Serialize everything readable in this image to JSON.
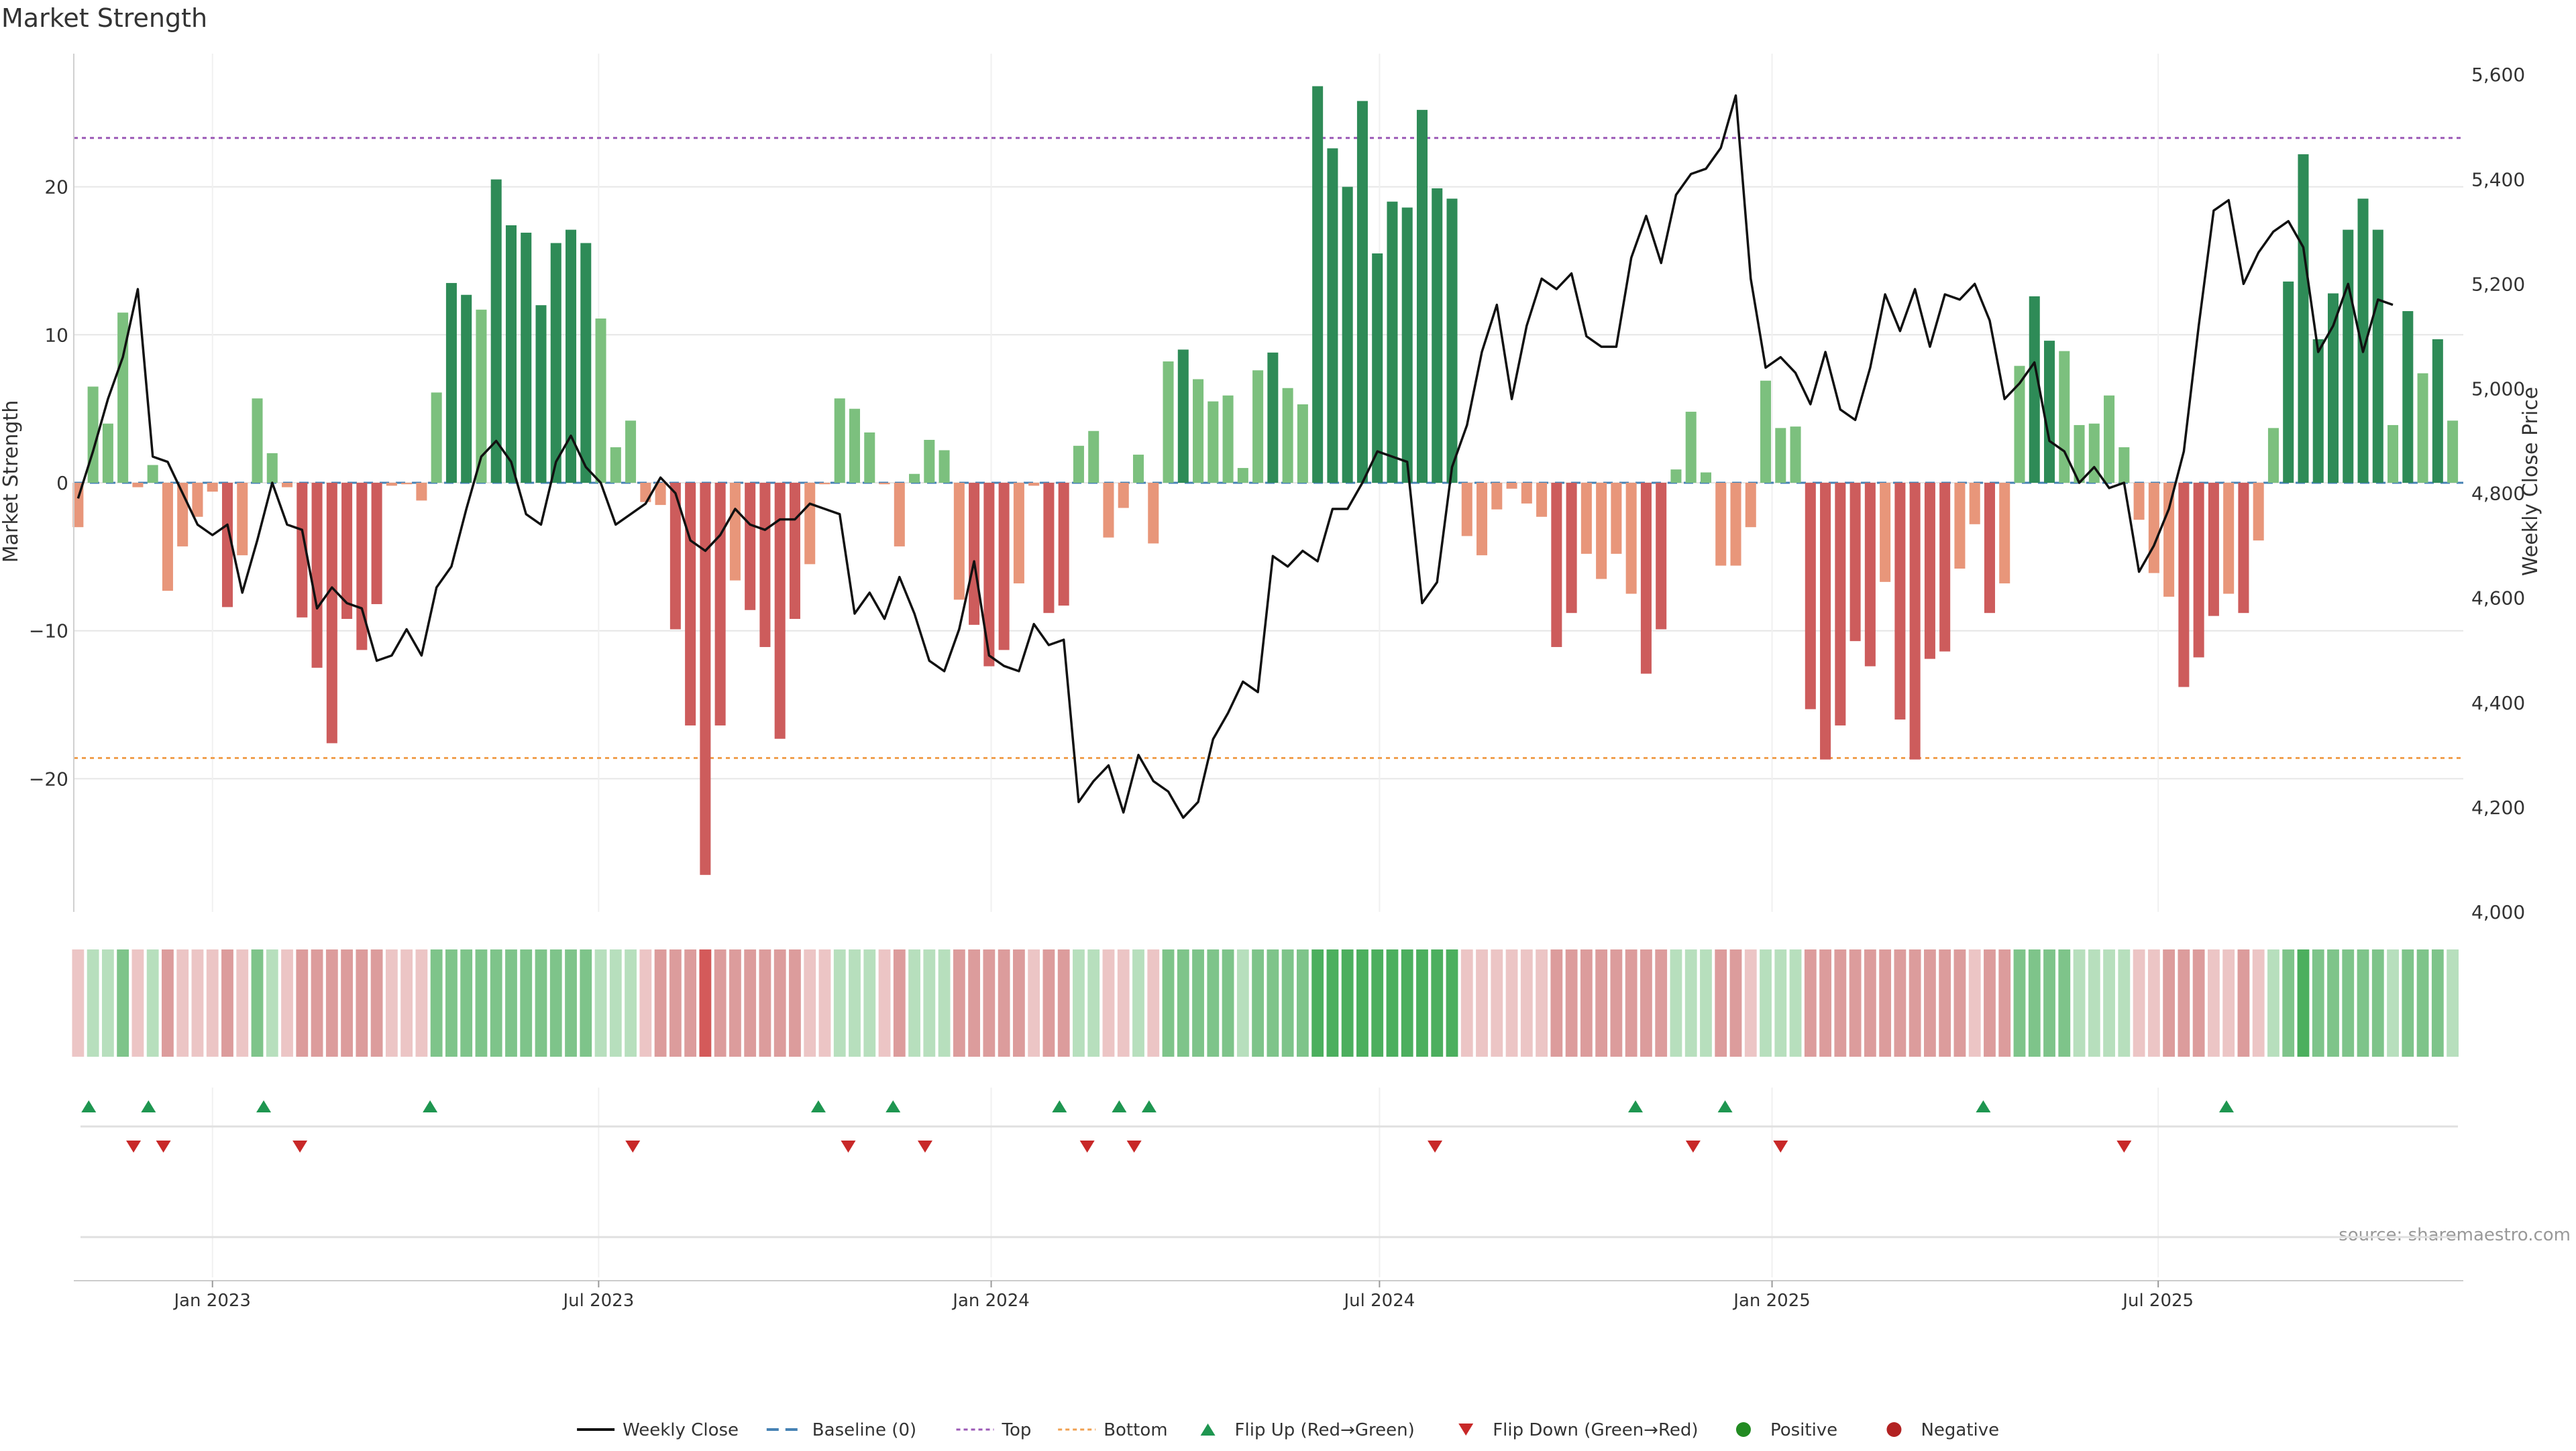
{
  "chart_data": {
    "type": "bar",
    "title": "Market Strength",
    "source": "source: sharemaestro.com",
    "left_axis": {
      "label": "Market Strength",
      "ylim": [
        -29,
        29
      ],
      "ticks": [
        20,
        10,
        0,
        -10,
        -20
      ],
      "tick_labels": [
        "20",
        "10",
        "0",
        "−10",
        "−20"
      ]
    },
    "right_axis": {
      "label": "Weekly Close Price",
      "ylim": [
        4000,
        5640
      ],
      "ticks": [
        4000,
        4200,
        4400,
        4600,
        4800,
        5000,
        5200,
        5400,
        5600
      ],
      "tick_labels": [
        "4,000",
        "4,200",
        "4,400",
        "4,600",
        "4,800",
        "5,000",
        "5,200",
        "5,400",
        "5,600"
      ]
    },
    "x_axis": {
      "range": [
        "2022-10-28",
        "2025-11-21"
      ],
      "ticks": [
        "2023-01-01",
        "2023-07-01",
        "2024-01-01",
        "2024-07-01",
        "2025-01-01",
        "2025-07-01"
      ],
      "tick_labels": [
        "Jan 2023",
        "Jul 2023",
        "Jan 2024",
        "Jul 2024",
        "Jan 2025",
        "Jul 2025"
      ]
    },
    "reference_lines": {
      "baseline": 0,
      "top": 23.3,
      "bottom": -18.6
    },
    "start_date": "2022-10-30",
    "weekly_strength": [
      -3,
      6.5,
      4,
      11.5,
      -0.3,
      1.2,
      -7.3,
      -4.3,
      -2.3,
      -0.6,
      -8.4,
      -4.9,
      5.7,
      2,
      -0.3,
      -9.1,
      -12.5,
      -17.6,
      -9.2,
      -11.3,
      -8.2,
      -0.2,
      -0.1,
      -1.2,
      6.1,
      13.5,
      12.7,
      11.7,
      20.5,
      17.4,
      16.9,
      12,
      16.2,
      17.1,
      16.2,
      11.1,
      2.4,
      4.2,
      -1.3,
      -1.5,
      -9.9,
      -16.4,
      -26.5,
      -16.4,
      -6.6,
      -8.6,
      -11.1,
      -17.3,
      -9.2,
      -5.5,
      -0.1,
      5.7,
      5,
      3.4,
      -0.1,
      -4.3,
      0.6,
      2.9,
      2.2,
      -7.9,
      -9.6,
      -12.4,
      -11.3,
      -6.8,
      -0.2,
      -8.8,
      -8.3,
      2.5,
      3.5,
      -3.7,
      -1.7,
      1.9,
      -4.1,
      8.2,
      9,
      7,
      5.5,
      5.9,
      1,
      7.6,
      8.8,
      6.4,
      5.3,
      26.8,
      22.6,
      20,
      25.8,
      15.5,
      19,
      18.6,
      25.2,
      19.9,
      19.2,
      -3.6,
      -4.9,
      -1.8,
      -0.4,
      -1.4,
      -2.3,
      -11.1,
      -8.8,
      -4.8,
      -6.5,
      -4.8,
      -7.5,
      -12.9,
      -9.9,
      0.9,
      4.8,
      0.7,
      -5.6,
      -5.6,
      -3,
      6.9,
      3.7,
      3.8,
      -15.3,
      -18.7,
      -16.4,
      -10.7,
      -12.4,
      -6.7,
      -16,
      -18.7,
      -11.9,
      -11.4,
      -5.8,
      -2.8,
      -8.8,
      -6.8,
      7.9,
      12.6,
      9.6,
      8.9,
      3.9,
      4,
      5.9,
      2.4,
      -2.5,
      -6.1,
      -7.7,
      -13.8,
      -11.8,
      -9,
      -7.5,
      -8.8,
      -3.9,
      3.7,
      13.6,
      22.2,
      9.7,
      12.8,
      17.1,
      19.2,
      17.1,
      3.9,
      11.6,
      7.4,
      9.7,
      4.2
    ],
    "weekly_close": [
      4790,
      4880,
      4980,
      5060,
      5190,
      4870,
      4860,
      4800,
      4740,
      4720,
      4740,
      4610,
      4710,
      4820,
      4740,
      4730,
      4580,
      4620,
      4590,
      4580,
      4480,
      4490,
      4540,
      4490,
      4620,
      4660,
      4770,
      4870,
      4900,
      4860,
      4760,
      4740,
      4860,
      4910,
      4850,
      4820,
      4740,
      4760,
      4780,
      4830,
      4800,
      4710,
      4690,
      4720,
      4770,
      4740,
      4730,
      4750,
      4750,
      4780,
      4770,
      4760,
      4570,
      4610,
      4560,
      4640,
      4570,
      4480,
      4460,
      4540,
      4670,
      4490,
      4470,
      4460,
      4550,
      4510,
      4520,
      4210,
      4250,
      4280,
      4190,
      4300,
      4250,
      4230,
      4180,
      4210,
      4330,
      4380,
      4440,
      4420,
      4680,
      4660,
      4690,
      4670,
      4770,
      4770,
      4820,
      4880,
      4870,
      4860,
      4590,
      4630,
      4850,
      4930,
      5070,
      5160,
      4980,
      5120,
      5210,
      5190,
      5220,
      5100,
      5080,
      5080,
      5250,
      5330,
      5240,
      5370,
      5410,
      5420,
      5460,
      5560,
      5210,
      5040,
      5060,
      5030,
      4970,
      5070,
      4960,
      4940,
      5040,
      5180,
      5110,
      5190,
      5080,
      5180,
      5170,
      5200,
      5130,
      4980,
      5010,
      5050,
      4900,
      4880,
      4820,
      4850,
      4810,
      4820,
      4650,
      4700,
      4770,
      4880,
      5120,
      5340,
      5360,
      5200,
      5260,
      5300,
      5320,
      5270,
      5070,
      5120,
      5200,
      5070,
      5170,
      5160
    ],
    "strip_shades": [
      "lr",
      "lg",
      "lg",
      "mg",
      "lr",
      "lg",
      "mr",
      "lr",
      "lr",
      "lr",
      "mr",
      "lr",
      "mg",
      "lg",
      "lr",
      "mr",
      "mr",
      "mr",
      "mr",
      "mr",
      "mr",
      "lr",
      "lr",
      "lr",
      "mg",
      "mg",
      "mg",
      "mg",
      "mg",
      "mg",
      "mg",
      "mg",
      "mg",
      "mg",
      "mg",
      "lg",
      "lg",
      "lg",
      "lr",
      "mr",
      "mr",
      "mr",
      "dr",
      "mr",
      "mr",
      "mr",
      "mr",
      "mr",
      "mr",
      "lr",
      "lr",
      "lg",
      "lg",
      "lg",
      "lr",
      "mr",
      "lg",
      "lg",
      "lg",
      "mr",
      "mr",
      "mr",
      "mr",
      "mr",
      "lr",
      "mr",
      "mr",
      "lg",
      "lg",
      "lr",
      "lr",
      "lg",
      "lr",
      "mg",
      "mg",
      "mg",
      "mg",
      "mg",
      "lg",
      "mg",
      "mg",
      "mg",
      "mg",
      "dg",
      "dg",
      "dg",
      "dg",
      "dg",
      "dg",
      "dg",
      "dg",
      "dg",
      "dg",
      "lr",
      "lr",
      "lr",
      "lr",
      "lr",
      "lr",
      "mr",
      "mr",
      "mr",
      "mr",
      "mr",
      "mr",
      "mr",
      "mr",
      "lg",
      "lg",
      "lg",
      "mr",
      "mr",
      "lr",
      "lg",
      "lg",
      "lg",
      "mr",
      "mr",
      "mr",
      "mr",
      "mr",
      "mr",
      "mr",
      "mr",
      "mr",
      "mr",
      "mr",
      "lr",
      "mr",
      "mr",
      "mg",
      "mg",
      "mg",
      "mg",
      "lg",
      "lg",
      "lg",
      "lg",
      "lr",
      "lr",
      "mr",
      "mr",
      "mr",
      "lr",
      "lr",
      "mr",
      "lr",
      "lg",
      "mg",
      "dg",
      "mg",
      "mg",
      "mg",
      "mg",
      "mg",
      "lg",
      "mg",
      "mg",
      "mg",
      "lg"
    ],
    "flip_up_dates": [
      "2022-11-04",
      "2022-12-02",
      "2023-01-25",
      "2023-04-13",
      "2023-10-12",
      "2023-11-16",
      "2024-02-02",
      "2024-03-01",
      "2024-03-15",
      "2024-10-29",
      "2024-12-10",
      "2025-04-10",
      "2025-08-02"
    ],
    "flip_down_dates": [
      "2022-11-25",
      "2022-12-09",
      "2023-02-11",
      "2023-07-17",
      "2023-10-26",
      "2023-12-01",
      "2024-02-15",
      "2024-03-08",
      "2024-07-27",
      "2024-11-25",
      "2025-01-05",
      "2025-06-15"
    ],
    "legend": [
      {
        "key": "close",
        "label": "Weekly Close"
      },
      {
        "key": "baseline",
        "label": "Baseline (0)"
      },
      {
        "key": "top",
        "label": "Top"
      },
      {
        "key": "bottom",
        "label": "Bottom"
      },
      {
        "key": "flip_up",
        "label": "Flip Up (Red→Green)"
      },
      {
        "key": "flip_down",
        "label": "Flip Down (Green→Red)"
      },
      {
        "key": "positive",
        "label": "Positive"
      },
      {
        "key": "negative",
        "label": "Negative"
      }
    ],
    "colors": {
      "pos_dark": "#2e8b57",
      "pos_light": "#7cc07e",
      "neg_dark": "#cd5c5c",
      "neg_light": "#e8967a",
      "close_line": "#111111",
      "baseline": "#4682b4",
      "top_line": "#9b59b6",
      "bottom_line": "#f0a050",
      "flip_up": "#1e9650",
      "flip_down": "#c82828",
      "positive_dot": "#228b22",
      "negative_dot": "#b22222",
      "strip_lr": "#ecc5c5",
      "strip_mr": "#dc9c9c",
      "strip_dr": "#d45a5a",
      "strip_lg": "#b7dfbd",
      "strip_mg": "#7ec48a",
      "strip_dg": "#4caf5e",
      "grid": "#e6e6e6",
      "text": "#333333"
    }
  }
}
